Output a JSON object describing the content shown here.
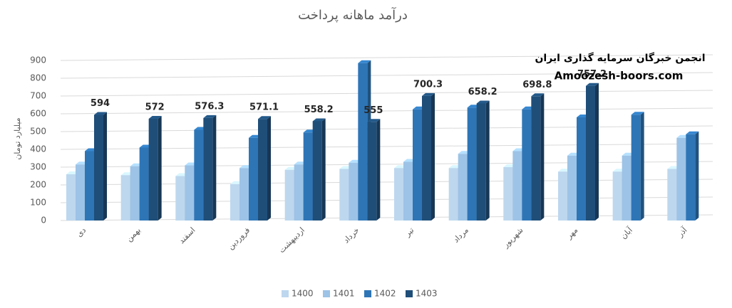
{
  "chart_data": {
    "type": "bar3d",
    "title": "درآمد ماهانه پرداخت",
    "ylabel": "میلیارد تومان",
    "annotations": [
      "انجمن خبرگان سرمایه گذاری ایران",
      "Amoozesh-boors.com"
    ],
    "categories": [
      "دی",
      "بهمن",
      "اسفند",
      "فروردین",
      "اردیبهشت",
      "خرداد",
      "تیر",
      "مرداد",
      "شهریور",
      "مهر",
      "آبان",
      "آذر"
    ],
    "series": [
      {
        "name": "1400",
        "color": "#bdd7ee",
        "values": [
          260,
          255,
          250,
          205,
          285,
          290,
          295,
          295,
          300,
          275,
          275,
          290
        ]
      },
      {
        "name": "1401",
        "color": "#9dc3e6",
        "values": [
          315,
          305,
          310,
          295,
          315,
          325,
          330,
          375,
          390,
          365,
          365,
          465
        ]
      },
      {
        "name": "1402",
        "color": "#2e75b6",
        "values": [
          390,
          410,
          510,
          465,
          495,
          885,
          625,
          635,
          625,
          580,
          595,
          485
        ]
      },
      {
        "name": "1403",
        "color": "#1f4e79",
        "values": [
          594,
          572,
          576.3,
          571.1,
          558.2,
          555,
          700.3,
          658.2,
          698.8,
          757.2,
          null,
          null
        ],
        "data_labels": true
      }
    ],
    "ylim": [
      0,
      900
    ],
    "yticks": [
      0,
      100,
      200,
      300,
      400,
      500,
      600,
      700,
      800,
      900
    ],
    "grid": true,
    "legend": "bottom"
  }
}
